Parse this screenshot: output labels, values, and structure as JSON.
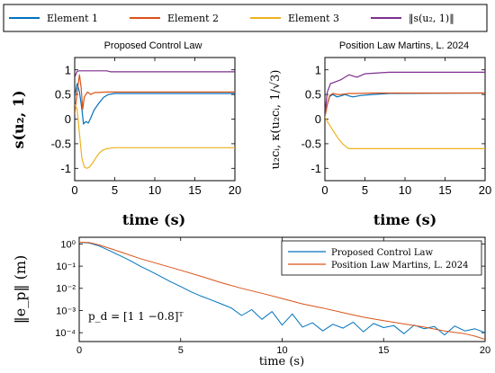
{
  "legend_top": [
    {
      "label": "Element 1",
      "color": "#0072BD"
    },
    {
      "label": "Element 2",
      "color": "#D95319"
    },
    {
      "label": "Element 3",
      "color": "#EDB120"
    },
    {
      "label": "‖s(u₂, 1)‖",
      "color": "#7E2F8E"
    }
  ],
  "chart_data": [
    {
      "type": "line",
      "title": "Proposed Control Law",
      "xlabel": "time (s)",
      "ylabel": "s(u₂, 1)",
      "xlim": [
        0,
        20
      ],
      "ylim": [
        -1.25,
        1.25
      ],
      "xticks": [
        "0",
        "5",
        "10",
        "15",
        "20"
      ],
      "yticks": [
        "1",
        "0.5",
        "0",
        "-0.5",
        "-1"
      ],
      "series": [
        {
          "name": "Element 1",
          "color": "#0072BD",
          "x": [
            0,
            0.3,
            0.6,
            0.9,
            1.1,
            1.4,
            1.7,
            2.0,
            2.4,
            3.0,
            3.6,
            4.2,
            5,
            8,
            20
          ],
          "y": [
            0.45,
            0.72,
            0.55,
            0.2,
            -0.1,
            -0.05,
            -0.08,
            0.02,
            0.18,
            0.32,
            0.44,
            0.5,
            0.52,
            0.52,
            0.52
          ]
        },
        {
          "name": "Element 2",
          "color": "#D95319",
          "x": [
            0,
            0.3,
            0.6,
            0.8,
            1.0,
            1.2,
            1.6,
            2.0,
            2.5,
            3.0,
            4.0,
            5,
            8,
            20
          ],
          "y": [
            0.1,
            0.55,
            0.9,
            0.65,
            0.2,
            0.45,
            0.55,
            0.5,
            0.54,
            0.54,
            0.55,
            0.55,
            0.55,
            0.55
          ]
        },
        {
          "name": "Element 3",
          "color": "#EDB120",
          "x": [
            0,
            0.3,
            0.6,
            0.9,
            1.2,
            1.5,
            1.8,
            2.2,
            2.6,
            3.0,
            3.5,
            4.0,
            4.5,
            5,
            6,
            8,
            20
          ],
          "y": [
            0.3,
            0.2,
            -0.3,
            -0.8,
            -0.97,
            -1.0,
            -0.98,
            -0.9,
            -0.8,
            -0.7,
            -0.63,
            -0.6,
            -0.59,
            -0.58,
            -0.58,
            -0.58,
            -0.58
          ]
        },
        {
          "name": "‖s(u₂, 1)‖",
          "color": "#7E2F8E",
          "x": [
            0,
            0.3,
            0.6,
            1.0,
            2,
            3,
            4,
            4.5,
            5,
            8,
            20
          ],
          "y": [
            0.85,
            0.97,
            0.98,
            0.98,
            0.98,
            0.98,
            0.98,
            0.96,
            0.96,
            0.96,
            0.96
          ]
        }
      ]
    },
    {
      "type": "line",
      "title": "Position Law Martins, L. 2024",
      "xlabel": "time (s)",
      "ylabel": "u₂cᵢ, κ(u₂cᵢ, 1/√3)",
      "xlim": [
        0,
        20
      ],
      "ylim": [
        -1.25,
        1.25
      ],
      "xticks": [
        "0",
        "5",
        "10",
        "15",
        "20"
      ],
      "yticks": [
        "1",
        "0.5",
        "0",
        "-0.5",
        "-1"
      ],
      "series": [
        {
          "name": "Element 1",
          "color": "#0072BD",
          "x": [
            0,
            0.3,
            0.6,
            1.0,
            1.5,
            2.0,
            2.5,
            3.0,
            3.5,
            4.5,
            6,
            8,
            20
          ],
          "y": [
            0.05,
            0.3,
            0.46,
            0.5,
            0.45,
            0.47,
            0.5,
            0.47,
            0.45,
            0.48,
            0.5,
            0.52,
            0.53
          ]
        },
        {
          "name": "Element 2",
          "color": "#D95319",
          "x": [
            0,
            0.3,
            0.6,
            1.0,
            1.5,
            2.0,
            3.0,
            4.0,
            6,
            8,
            20
          ],
          "y": [
            0.05,
            0.3,
            0.48,
            0.52,
            0.5,
            0.5,
            0.52,
            0.52,
            0.53,
            0.53,
            0.53
          ]
        },
        {
          "name": "Element 3",
          "color": "#EDB120",
          "x": [
            0,
            0.3,
            0.7,
            1.2,
            1.7,
            2.2,
            2.7,
            3.0,
            3.5,
            4.5,
            6,
            8,
            20
          ],
          "y": [
            0.05,
            -0.05,
            -0.15,
            -0.28,
            -0.4,
            -0.5,
            -0.57,
            -0.6,
            -0.6,
            -0.6,
            -0.6,
            -0.6,
            -0.6
          ]
        },
        {
          "name": "‖s(u₂, 1)‖",
          "color": "#7E2F8E",
          "x": [
            0,
            0.3,
            0.7,
            1.2,
            2.0,
            3.0,
            4.0,
            5.0,
            6.0,
            8,
            20
          ],
          "y": [
            0.1,
            0.55,
            0.72,
            0.75,
            0.8,
            0.9,
            0.85,
            0.92,
            0.93,
            0.95,
            0.95
          ]
        }
      ]
    },
    {
      "type": "line",
      "log_y": true,
      "xlabel": "time (s)",
      "ylabel": "‖e_p‖ (m)",
      "xlim": [
        0,
        20
      ],
      "ylim": [
        4e-05,
        2
      ],
      "xticks": [
        "0",
        "5",
        "10",
        "15",
        "20"
      ],
      "yticks": [
        "10⁰",
        "10⁻¹",
        "10⁻²",
        "10⁻³",
        "10⁻⁴"
      ],
      "annotation": "p_d = [1 1 −0.8]ᵀ",
      "legend": "top-right",
      "series": [
        {
          "name": "Proposed Control Law",
          "color": "#0072BD",
          "x": [
            0,
            0.5,
            1,
            1.5,
            2,
            2.5,
            3,
            3.5,
            4,
            4.5,
            5,
            5.5,
            6,
            6.5,
            7,
            7.5,
            8,
            8.5,
            9,
            9.5,
            10,
            10.5,
            11,
            11.5,
            12,
            12.5,
            13,
            13.5,
            14,
            14.5,
            15,
            15.5,
            16,
            16.5,
            17,
            17.5,
            18,
            18.5,
            19,
            19.5,
            20
          ],
          "y": [
            1.2,
            1.1,
            0.8,
            0.5,
            0.3,
            0.18,
            0.1,
            0.06,
            0.035,
            0.02,
            0.012,
            0.007,
            0.0045,
            0.003,
            0.002,
            0.0013,
            0.0006,
            0.0011,
            0.0004,
            0.0009,
            0.00022,
            0.0007,
            0.00018,
            0.00028,
            0.00012,
            0.00024,
            0.00016,
            0.0003,
            0.00011,
            0.00026,
            0.00017,
            0.00021,
            9e-05,
            0.00022,
            0.00015,
            0.00019,
            8e-05,
            0.0002,
            0.00012,
            0.00015,
            0.0001
          ]
        },
        {
          "name": "Position Law Martins, L. 2024",
          "color": "#D95319",
          "x": [
            0,
            0.5,
            1,
            2,
            3,
            4,
            5,
            6,
            7,
            8,
            9,
            10,
            11,
            12,
            13,
            14,
            15,
            16,
            17,
            18,
            19,
            19.5,
            20
          ],
          "y": [
            1.2,
            1.15,
            0.9,
            0.45,
            0.22,
            0.12,
            0.065,
            0.035,
            0.018,
            0.01,
            0.006,
            0.0035,
            0.002,
            0.0013,
            0.0008,
            0.0005,
            0.00035,
            0.00025,
            0.00018,
            0.00012,
            9e-05,
            7e-05,
            5e-05
          ]
        }
      ]
    }
  ]
}
